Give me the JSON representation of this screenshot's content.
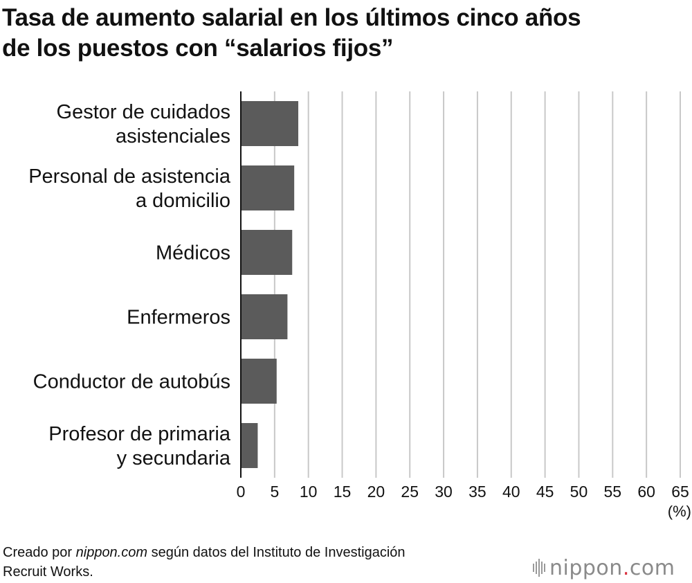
{
  "title_lines": [
    "Tasa de aumento salarial en los últimos cinco años",
    "de los puestos con “salarios fijos”"
  ],
  "footer": {
    "prefix": "Creado por ",
    "site": "nippon.com",
    "suffix": " según datos del Instituto de Investigación",
    "line2": "Recruit Works."
  },
  "logo": {
    "name": "nippon",
    "dot": ".",
    "tld": "com",
    "accent": "#d9323f"
  },
  "chart_data": {
    "type": "bar",
    "orientation": "horizontal",
    "categories": [
      [
        "Gestor de cuidados",
        "asistenciales"
      ],
      [
        "Personal de asistencia",
        "a domicilio"
      ],
      [
        "Médicos"
      ],
      [
        "Enfermeros"
      ],
      [
        "Conductor de autobús"
      ],
      [
        "Profesor de primaria",
        "y secundaria"
      ]
    ],
    "values": [
      8.5,
      7.9,
      7.6,
      6.9,
      5.3,
      2.5
    ],
    "xlim": [
      0,
      65
    ],
    "xticks": [
      0,
      5,
      10,
      15,
      20,
      25,
      30,
      35,
      40,
      45,
      50,
      55,
      60,
      65
    ],
    "xunit": "(%)",
    "grid": true,
    "bar_color": "#5b5b5b",
    "grid_color": "#c8c8c8"
  }
}
